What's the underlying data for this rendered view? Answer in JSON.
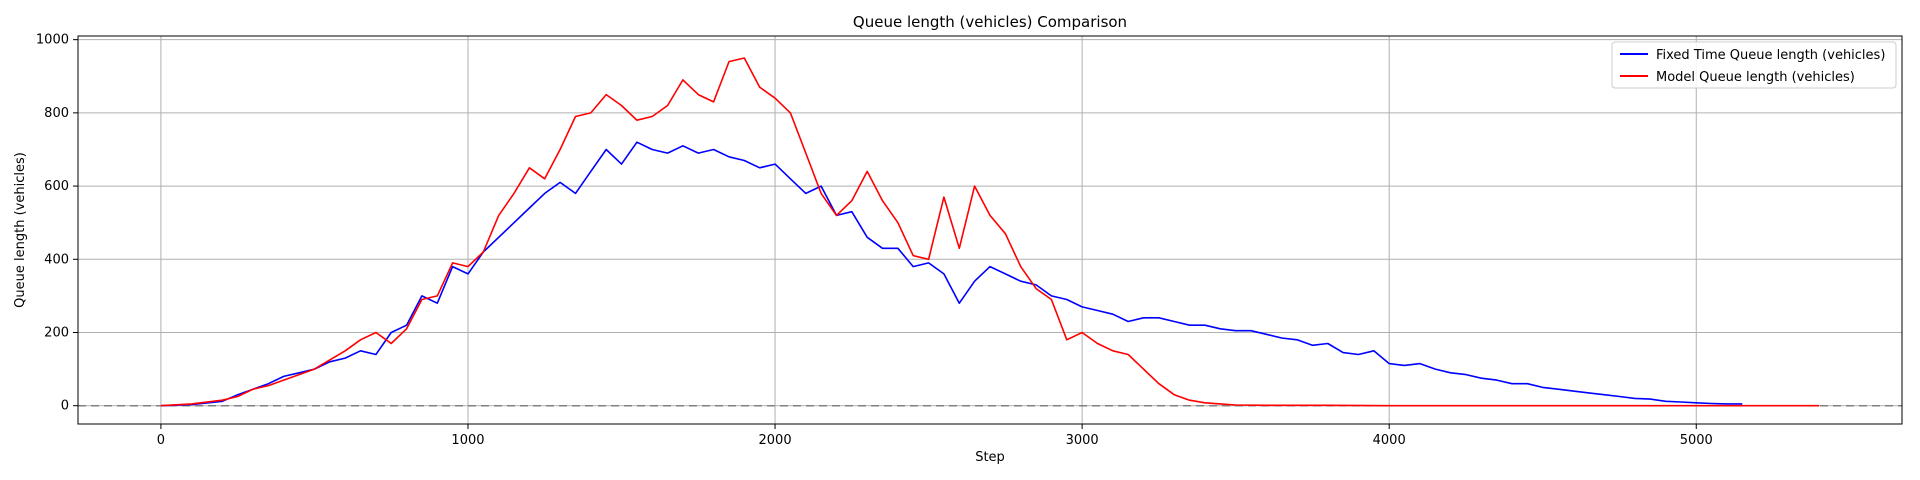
{
  "chart_data": {
    "type": "line",
    "title": "Queue length (vehicles) Comparison",
    "xlabel": "Step",
    "ylabel": "Queue length (vehicles)",
    "xlim": [
      -270,
      5670
    ],
    "ylim": [
      -50,
      1010
    ],
    "xticks": [
      0,
      1000,
      2000,
      3000,
      4000,
      5000
    ],
    "xtick_labels": [
      "0",
      "1000",
      "2000",
      "3000",
      "4000",
      "5000"
    ],
    "yticks": [
      0,
      200,
      400,
      600,
      800,
      1000
    ],
    "ytick_labels": [
      "0",
      "200",
      "400",
      "600",
      "800",
      "1000"
    ],
    "grid": true,
    "legend_position": "top-right",
    "reference_line": {
      "y": 0,
      "style": "dashed",
      "color": "#808080"
    },
    "series": [
      {
        "name": "Fixed Time Queue length (vehicles)",
        "color": "#0000ff",
        "x": [
          0,
          100,
          200,
          250,
          300,
          350,
          400,
          450,
          500,
          550,
          600,
          650,
          700,
          750,
          800,
          850,
          900,
          950,
          1000,
          1050,
          1100,
          1150,
          1200,
          1250,
          1300,
          1350,
          1400,
          1450,
          1500,
          1550,
          1600,
          1650,
          1700,
          1750,
          1800,
          1850,
          1900,
          1950,
          2000,
          2050,
          2100,
          2150,
          2200,
          2250,
          2300,
          2350,
          2400,
          2450,
          2500,
          2550,
          2600,
          2650,
          2700,
          2750,
          2800,
          2850,
          2900,
          2950,
          3000,
          3050,
          3100,
          3150,
          3200,
          3250,
          3300,
          3350,
          3400,
          3450,
          3500,
          3550,
          3600,
          3650,
          3700,
          3750,
          3800,
          3850,
          3900,
          3950,
          4000,
          4050,
          4100,
          4150,
          4200,
          4250,
          4300,
          4350,
          4400,
          4450,
          4500,
          4550,
          4600,
          4650,
          4700,
          4750,
          4800,
          4850,
          4900,
          4950,
          5000,
          5050,
          5100,
          5150
        ],
        "values": [
          0,
          3,
          12,
          30,
          45,
          60,
          80,
          90,
          100,
          120,
          130,
          150,
          140,
          200,
          220,
          300,
          280,
          380,
          360,
          420,
          460,
          500,
          540,
          580,
          610,
          580,
          640,
          700,
          660,
          720,
          700,
          690,
          710,
          690,
          700,
          680,
          670,
          650,
          660,
          620,
          580,
          600,
          520,
          530,
          460,
          430,
          430,
          380,
          390,
          360,
          280,
          340,
          380,
          360,
          340,
          330,
          300,
          290,
          270,
          260,
          250,
          230,
          240,
          240,
          230,
          220,
          220,
          210,
          205,
          205,
          195,
          185,
          180,
          165,
          170,
          145,
          140,
          150,
          115,
          110,
          115,
          100,
          90,
          85,
          75,
          70,
          60,
          60,
          50,
          45,
          40,
          35,
          30,
          25,
          20,
          18,
          12,
          10,
          8,
          6,
          5,
          5
        ]
      },
      {
        "name": "Model Queue length (vehicles)",
        "color": "#ff0000",
        "x": [
          0,
          100,
          200,
          250,
          300,
          350,
          400,
          450,
          500,
          550,
          600,
          650,
          700,
          750,
          800,
          850,
          900,
          950,
          1000,
          1050,
          1100,
          1150,
          1200,
          1250,
          1300,
          1350,
          1400,
          1450,
          1500,
          1550,
          1600,
          1650,
          1700,
          1750,
          1800,
          1850,
          1900,
          1950,
          2000,
          2050,
          2100,
          2150,
          2200,
          2250,
          2300,
          2350,
          2400,
          2450,
          2500,
          2550,
          2600,
          2650,
          2700,
          2750,
          2800,
          2850,
          2900,
          2950,
          3000,
          3050,
          3100,
          3150,
          3200,
          3250,
          3300,
          3350,
          3400,
          3450,
          3500,
          3600,
          3800,
          4000,
          4500,
          5000,
          5400
        ],
        "values": [
          0,
          5,
          15,
          25,
          45,
          55,
          70,
          85,
          100,
          125,
          150,
          180,
          200,
          170,
          210,
          290,
          300,
          390,
          380,
          420,
          520,
          580,
          650,
          620,
          700,
          790,
          800,
          850,
          820,
          780,
          790,
          820,
          890,
          850,
          830,
          940,
          950,
          870,
          840,
          800,
          690,
          580,
          520,
          560,
          640,
          560,
          500,
          410,
          400,
          570,
          430,
          600,
          520,
          470,
          380,
          320,
          290,
          180,
          200,
          170,
          150,
          140,
          100,
          60,
          30,
          15,
          8,
          5,
          2,
          1,
          1,
          0,
          0,
          0,
          0
        ]
      }
    ]
  }
}
